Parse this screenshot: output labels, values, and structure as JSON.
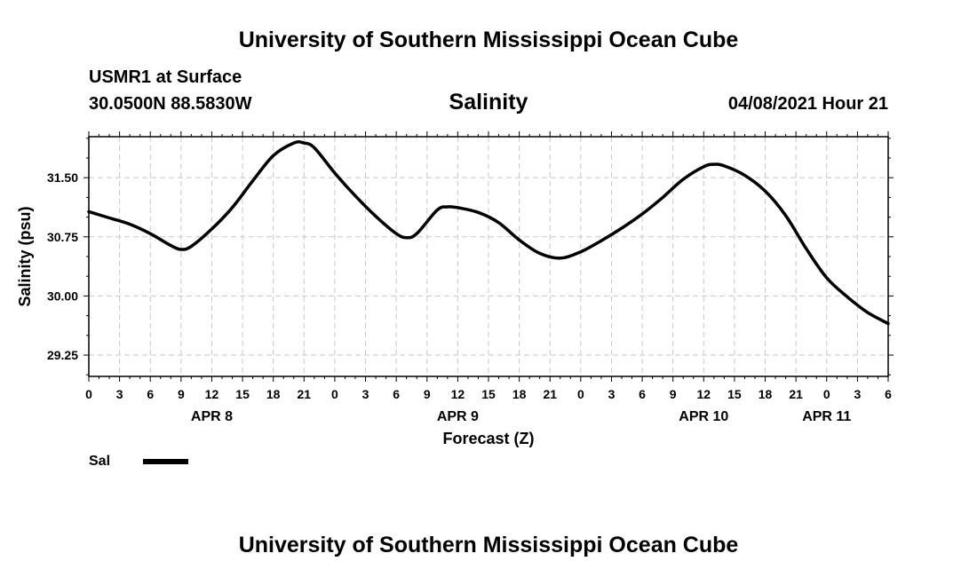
{
  "header": {
    "title": "University of Southern Mississippi Ocean Cube",
    "station": "USMR1 at Surface",
    "coords": "30.0500N  88.5830W",
    "variable": "Salinity",
    "datetime": "04/08/2021 Hour 21"
  },
  "footer": {
    "title": "University of Southern Mississippi Ocean Cube"
  },
  "legend": {
    "label": "Sal",
    "color": "#000000"
  },
  "chart_data": {
    "type": "line",
    "title": "Salinity",
    "xlabel": "Forecast (Z)",
    "ylabel": "Salinity (psu)",
    "x_unit": "hours from APR 8 00Z",
    "xlim": [
      0,
      78
    ],
    "ylim": [
      28.98,
      32.02
    ],
    "grid": true,
    "yticks": [
      29.25,
      30.0,
      30.75,
      31.5
    ],
    "ytick_labels": [
      "29.25",
      "30.00",
      "30.75",
      "31.50"
    ],
    "xtick_labels": [
      "0",
      "3",
      "6",
      "9",
      "12",
      "15",
      "18",
      "21",
      "0",
      "3",
      "6",
      "9",
      "12",
      "15",
      "18",
      "21",
      "0",
      "3",
      "6",
      "9",
      "12",
      "15",
      "18",
      "21",
      "0",
      "3",
      "6"
    ],
    "day_labels": [
      {
        "label": "APR 8",
        "hour": 12
      },
      {
        "label": "APR 9",
        "hour": 36
      },
      {
        "label": "APR 10",
        "hour": 60
      },
      {
        "label": "APR 11",
        "hour": 72
      }
    ],
    "series": [
      {
        "name": "Sal",
        "x": [
          0,
          2,
          4,
          6,
          8,
          9,
          10,
          12,
          14,
          16,
          18,
          20,
          21,
          22,
          24,
          26,
          28,
          30,
          31,
          32,
          34,
          35,
          36,
          38,
          40,
          42,
          44,
          46,
          48,
          50,
          52,
          54,
          56,
          58,
          60,
          61,
          62,
          64,
          66,
          68,
          70,
          72,
          74,
          76,
          78
        ],
        "y": [
          31.07,
          30.99,
          30.91,
          30.79,
          30.64,
          30.59,
          30.63,
          30.85,
          31.12,
          31.46,
          31.78,
          31.94,
          31.94,
          31.88,
          31.56,
          31.27,
          31.01,
          30.79,
          30.74,
          30.79,
          31.09,
          31.13,
          31.12,
          31.06,
          30.93,
          30.71,
          30.54,
          30.48,
          30.56,
          30.7,
          30.86,
          31.04,
          31.25,
          31.48,
          31.64,
          31.67,
          31.65,
          31.53,
          31.33,
          31.02,
          30.6,
          30.23,
          29.99,
          29.79,
          29.65
        ]
      }
    ]
  }
}
